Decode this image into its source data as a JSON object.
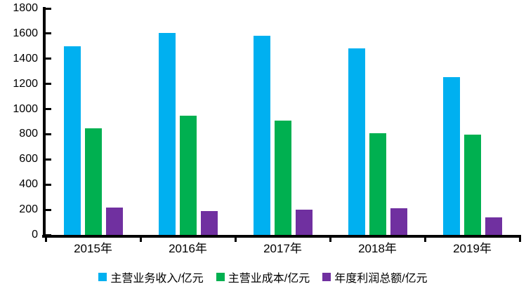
{
  "chart": {
    "background": "#ffffff",
    "axis_color": "#000000",
    "text_color": "#000000"
  },
  "chart_data": {
    "type": "bar",
    "categories": [
      "2015年",
      "2016年",
      "2017年",
      "2018年",
      "2019年"
    ],
    "series": [
      {
        "name": "主营业务收入/亿元",
        "color": "#00B0F0",
        "values": [
          1500,
          1605,
          1580,
          1480,
          1255
        ]
      },
      {
        "name": "主营业成本/亿元",
        "color": "#00B050",
        "values": [
          845,
          945,
          910,
          810,
          795
        ]
      },
      {
        "name": "年度利润总额/亿元",
        "color": "#7030A0",
        "values": [
          215,
          190,
          200,
          210,
          140
        ]
      }
    ],
    "title": "",
    "xlabel": "",
    "ylabel": "",
    "ylim": [
      0,
      1800
    ],
    "ytick_step": 200,
    "y_tick_labels": [
      "0",
      "200",
      "400",
      "600",
      "800",
      "1000",
      "1200",
      "1400",
      "1600",
      "1800"
    ],
    "grid": false,
    "legend_position": "bottom"
  }
}
